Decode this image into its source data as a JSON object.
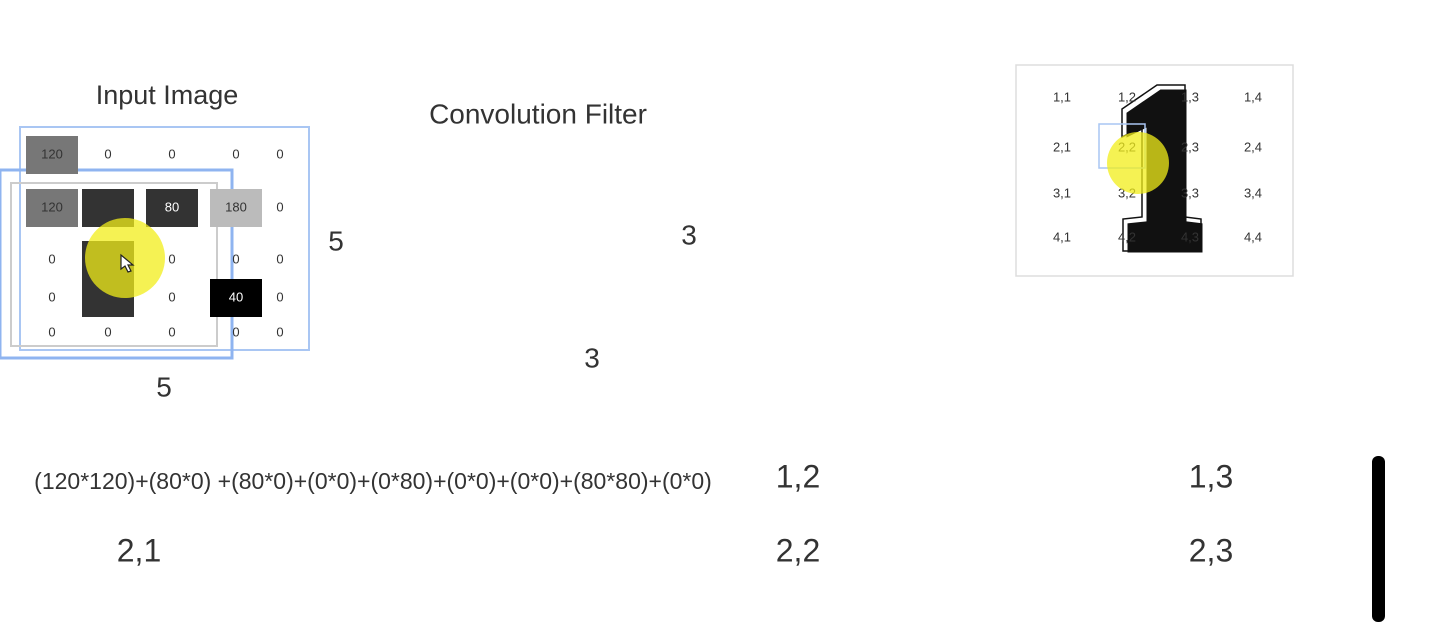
{
  "input": {
    "title": "Input Image",
    "cells": [
      [
        "120",
        "0",
        "0",
        "0",
        "0"
      ],
      [
        "120",
        null,
        "80",
        "180",
        "0"
      ],
      [
        "0",
        null,
        "0",
        "0",
        "0"
      ],
      [
        "0",
        null,
        "0",
        "40",
        "0"
      ],
      [
        "0",
        "0",
        "0",
        "0",
        "0"
      ]
    ],
    "width_label": "5",
    "height_label": "5"
  },
  "filter": {
    "title": "Convolution Filter",
    "width_label": "3",
    "height_label": "3"
  },
  "output_grid": {
    "cells": [
      [
        "1,1",
        "1,2",
        "1,3",
        "1,4"
      ],
      [
        "2,1",
        "2,2",
        "2,3",
        "2,4"
      ],
      [
        "3,1",
        "3,2",
        "3,3",
        "3,4"
      ],
      [
        "4,1",
        "4,2",
        "4,3",
        "4,4"
      ]
    ]
  },
  "formula": {
    "expression": "(120*120)+(80*0) +(80*0)+(0*0)+(0*80)+(0*0)+(0*0)+(80*80)+(0*0)",
    "labels_row1": [
      "1,2",
      "1,3"
    ],
    "labels_row2": [
      "2,1",
      "2,2",
      "2,3"
    ]
  }
}
